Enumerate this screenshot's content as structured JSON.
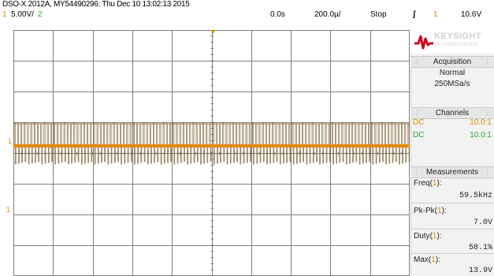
{
  "title": "DSO-X 2012A, MY54490296: Thu Dec 10 13:02:13 2015",
  "statusbar": {
    "ch1_num": "1",
    "ch1_scale": "5.00V/",
    "ch2_num": "2",
    "time_delay": "0.0s",
    "time_scale": "200.0µ/",
    "run_state": "Stop",
    "trigger_icon": "trigger-edge-icon",
    "trigger_glyph": "ʃ",
    "trigger_source": "1",
    "trigger_level": "10.6V"
  },
  "logo": {
    "brand": "KEYSIGHT",
    "sub": "TECHNOLOGIES"
  },
  "acquisition": {
    "header": "Acquisition",
    "mode": "Normal",
    "rate": "250MSa/s"
  },
  "channels": {
    "header": "Channels",
    "rows": [
      {
        "coupling": "DC",
        "probe": "10.0:1",
        "color": "#e08a00"
      },
      {
        "coupling": "DC",
        "probe": "10.0:1",
        "color": "#2aa53a"
      }
    ]
  },
  "measurements": {
    "header": "Measurements",
    "items": [
      {
        "name": "Freq",
        "ch": "1",
        "value": "59.5kHz"
      },
      {
        "name": "Pk-Pk",
        "ch": "1",
        "value": "7.0V"
      },
      {
        "name": "Duty",
        "ch": "1",
        "value": "58.1%"
      },
      {
        "name": "Max",
        "ch": "1",
        "value": "13.9V"
      }
    ]
  },
  "markers": {
    "ch1": "1",
    "ground": "1"
  },
  "colors": {
    "ch1": "#e08a00",
    "ch2": "#2aa53a",
    "trace": "#7a5a2a",
    "grid": "#7f7f7f",
    "logo_red": "#d0021b"
  }
}
